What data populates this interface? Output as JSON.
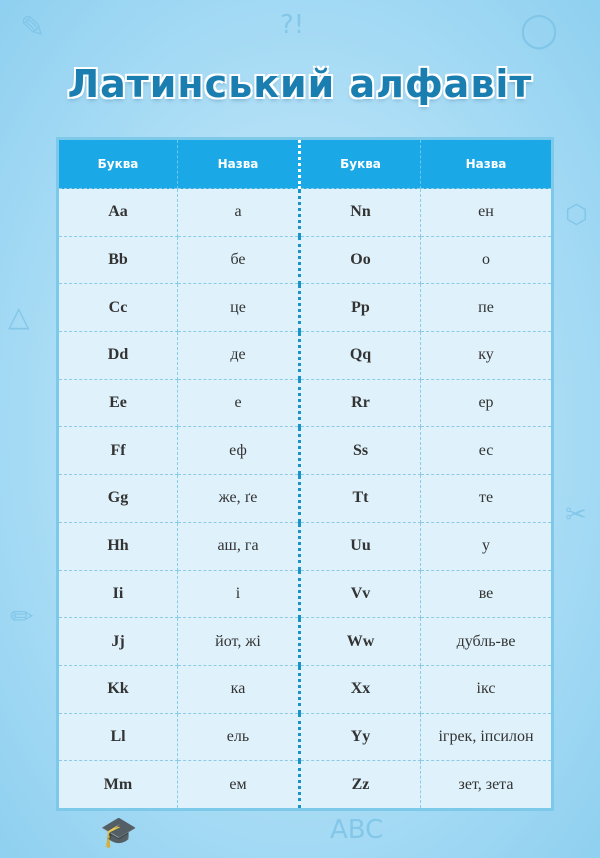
{
  "title": "Латинський алфавіт",
  "headers": [
    "Буква",
    "Назва",
    "Буква",
    "Назва"
  ],
  "rows": [
    {
      "l1": "Aa",
      "n1": "а",
      "l2": "Nn",
      "n2": "ен"
    },
    {
      "l1": "Bb",
      "n1": "бе",
      "l2": "Oo",
      "n2": "о"
    },
    {
      "l1": "Cc",
      "n1": "це",
      "l2": "Pp",
      "n2": "пе"
    },
    {
      "l1": "Dd",
      "n1": "де",
      "l2": "Qq",
      "n2": "ку"
    },
    {
      "l1": "Ee",
      "n1": "е",
      "l2": "Rr",
      "n2": "ер"
    },
    {
      "l1": "Ff",
      "n1": "еф",
      "l2": "Ss",
      "n2": "ес"
    },
    {
      "l1": "Gg",
      "n1": "же, ґе",
      "l2": "Tt",
      "n2": "те"
    },
    {
      "l1": "Hh",
      "n1": "аш, га",
      "l2": "Uu",
      "n2": "у"
    },
    {
      "l1": "Ii",
      "n1": "і",
      "l2": "Vv",
      "n2": "ве"
    },
    {
      "l1": "Jj",
      "n1": "йот, жі",
      "l2": "Ww",
      "n2": "дубль-ве"
    },
    {
      "l1": "Kk",
      "n1": "ка",
      "l2": "Xx",
      "n2": "ікс"
    },
    {
      "l1": "Ll",
      "n1": "ель",
      "l2": "Yy",
      "n2": "ігрек, іпсилон"
    },
    {
      "l1": "Mm",
      "n1": "ем",
      "l2": "Zz",
      "n2": "зет, зета"
    }
  ],
  "colors": {
    "header": "#1aa9e6",
    "title": "#1a7fb0",
    "cell": "#dff2fb"
  }
}
